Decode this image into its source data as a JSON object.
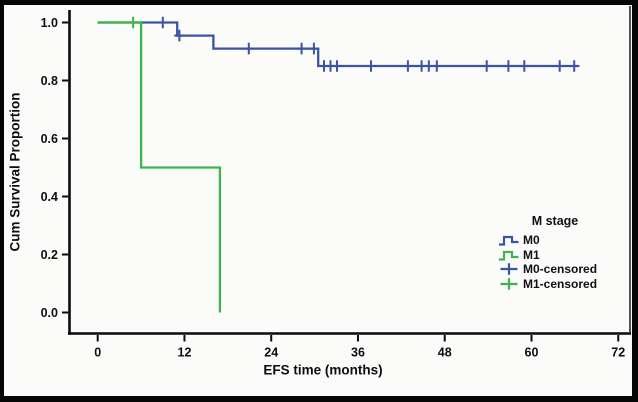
{
  "chart_data": {
    "type": "line",
    "chart_kind": "kaplan_meier_step",
    "title": "",
    "xlabel": "EFS time (months)",
    "ylabel": "Cum Survival Proportion",
    "xlim": [
      -2,
      74
    ],
    "ylim": [
      -0.04,
      1.06
    ],
    "x_ticks": [
      0,
      12,
      24,
      36,
      48,
      60,
      72
    ],
    "y_ticks": [
      0.0,
      0.2,
      0.4,
      0.6,
      0.8,
      1.0
    ],
    "grid": false,
    "axis_color": "#0b0b0b",
    "legend": {
      "title": "M stage",
      "position": "inside lower right",
      "entries": [
        {
          "label": "M0",
          "marker": "step",
          "color": "#3a53a4"
        },
        {
          "label": "M1",
          "marker": "step",
          "color": "#3db54a"
        },
        {
          "label": "M0-censored",
          "marker": "plus",
          "color": "#3a53a4"
        },
        {
          "label": "M1-censored",
          "marker": "plus",
          "color": "#3db54a"
        }
      ]
    },
    "series": [
      {
        "name": "M0",
        "color": "#3a53a4",
        "step_points": [
          [
            0,
            1.0
          ],
          [
            11,
            1.0
          ],
          [
            11,
            0.955
          ],
          [
            16,
            0.955
          ],
          [
            16,
            0.91
          ],
          [
            30.5,
            0.91
          ],
          [
            30.5,
            0.85
          ],
          [
            66.5,
            0.85
          ]
        ],
        "censored_points": [
          [
            9,
            1.0
          ],
          [
            11.3,
            0.955
          ],
          [
            20.9,
            0.91
          ],
          [
            28.2,
            0.91
          ],
          [
            29.9,
            0.91
          ],
          [
            31.3,
            0.85
          ],
          [
            32.2,
            0.85
          ],
          [
            33.1,
            0.85
          ],
          [
            37.8,
            0.85
          ],
          [
            42.9,
            0.85
          ],
          [
            44.8,
            0.85
          ],
          [
            45.8,
            0.85
          ],
          [
            46.9,
            0.85
          ],
          [
            53.8,
            0.85
          ],
          [
            56.8,
            0.85
          ],
          [
            59.0,
            0.85
          ],
          [
            63.9,
            0.85
          ],
          [
            65.9,
            0.85
          ]
        ]
      },
      {
        "name": "M1",
        "color": "#3db54a",
        "step_points": [
          [
            0,
            1.0
          ],
          [
            6,
            1.0
          ],
          [
            6,
            0.5
          ],
          [
            16.9,
            0.5
          ],
          [
            16.9,
            0.0
          ]
        ],
        "censored_points": [
          [
            4.9,
            1.0
          ]
        ]
      }
    ]
  }
}
